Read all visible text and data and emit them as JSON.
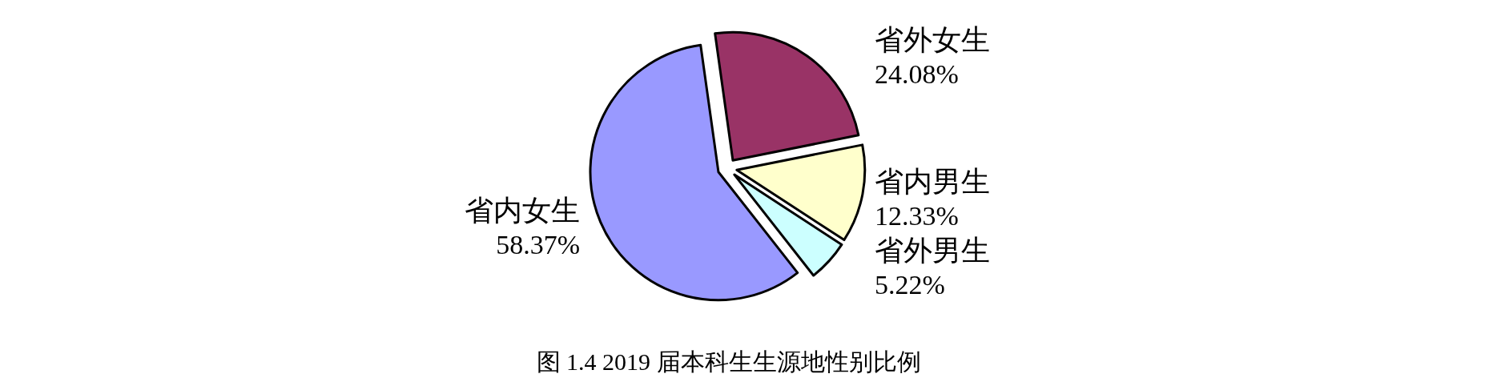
{
  "chart_data": {
    "type": "pie",
    "title": "图 1.4   2019 届本科生生源地性别比例",
    "categories": [
      "省外女生",
      "省内男生",
      "省外男生",
      "省内女生"
    ],
    "values": [
      24.08,
      12.33,
      5.22,
      58.37
    ],
    "colors": [
      "#993366",
      "#ffffcc",
      "#ccffff",
      "#9999ff"
    ],
    "value_labels": [
      "24.08%",
      "12.33%",
      "5.22%",
      "58.37%"
    ]
  }
}
